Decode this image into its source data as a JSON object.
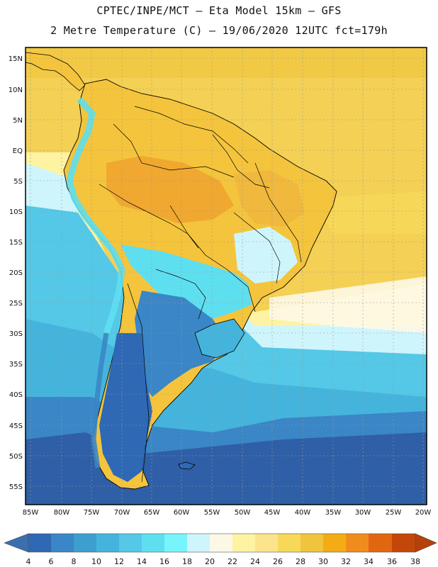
{
  "header": {
    "line1": "CPTEC/INPE/MCT –  Eta Model 15km – GFS",
    "line2": "2 Metre Temperature (C) – 19/06/2020 12UTC fct=179h"
  },
  "axes": {
    "lat_labels": [
      "15N",
      "10N",
      "5N",
      "EQ",
      "5S",
      "10S",
      "15S",
      "20S",
      "25S",
      "30S",
      "35S",
      "40S",
      "45S",
      "50S",
      "55S"
    ],
    "lon_labels": [
      "85W",
      "80W",
      "75W",
      "70W",
      "65W",
      "60W",
      "55W",
      "50W",
      "45W",
      "40W",
      "35W",
      "30W",
      "25W",
      "20W"
    ]
  },
  "colorbar": {
    "labels": [
      "4",
      "6",
      "8",
      "10",
      "12",
      "14",
      "16",
      "18",
      "20",
      "22",
      "24",
      "26",
      "28",
      "30",
      "32",
      "34",
      "36",
      "38"
    ],
    "colors": [
      "#3a70b0",
      "#2f68b4",
      "#3a86c6",
      "#3c9fcf",
      "#45b4dc",
      "#54c8e6",
      "#5edff0",
      "#78f4fc",
      "#cff5fc",
      "#fdf8e6",
      "#fdf3a2",
      "#fce48c",
      "#f8d858",
      "#f0c43c",
      "#f4ac14",
      "#f08c1c",
      "#e26610",
      "#c44608",
      "#b4420a"
    ]
  },
  "map_colors": {
    "ocean_south": "#2f5fa6",
    "ocean_mid": "#45b4dc",
    "ocean_cyan": "#54c8e6",
    "ocean_light": "#cff5fc",
    "ocean_warm": "#f8d858",
    "ocean_pale": "#fdf3a2",
    "land_warm": "#f4c43c",
    "land_hot": "#f0a830",
    "land_cool": "#2f68b4",
    "andes": "#5edff0",
    "border": "#000000",
    "grid": "#9a9a9a"
  }
}
